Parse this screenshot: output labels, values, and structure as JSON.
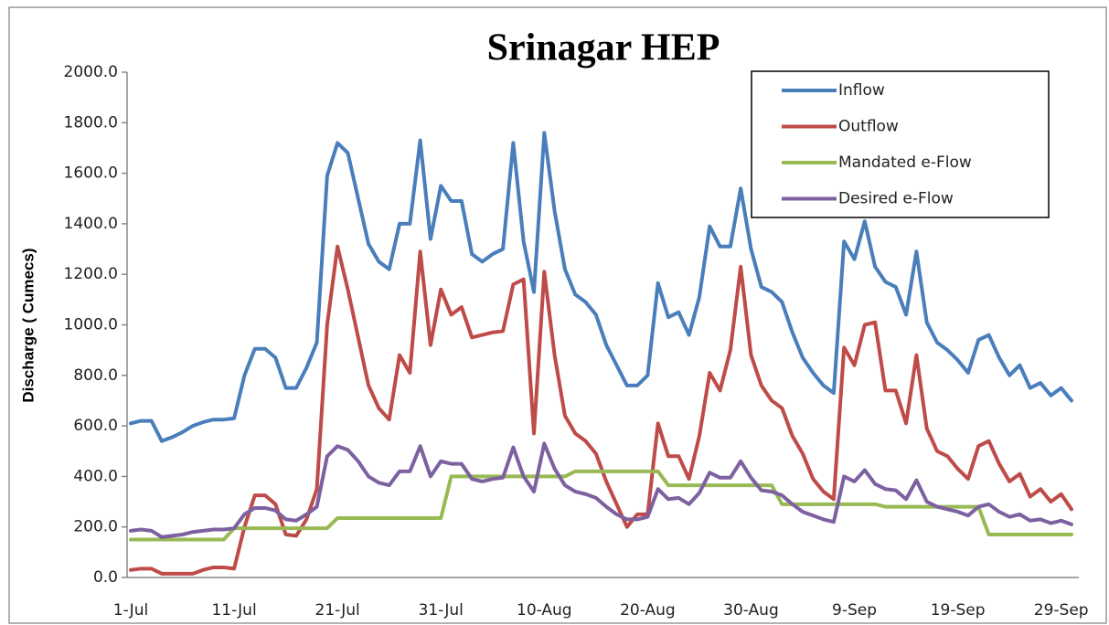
{
  "chart_data": {
    "type": "line",
    "title": "Srinagar HEP",
    "y_label": "Discharge ( Cumecs)",
    "categories": [
      "1-Jul",
      null,
      null,
      null,
      null,
      null,
      null,
      null,
      null,
      null,
      "11-Jul",
      null,
      null,
      null,
      null,
      null,
      null,
      null,
      null,
      null,
      "21-Jul",
      null,
      null,
      null,
      null,
      null,
      null,
      null,
      null,
      null,
      "31-Jul",
      null,
      null,
      null,
      null,
      null,
      null,
      null,
      null,
      null,
      "10-Aug",
      null,
      null,
      null,
      null,
      null,
      null,
      null,
      null,
      null,
      "20-Aug",
      null,
      null,
      null,
      null,
      null,
      null,
      null,
      null,
      null,
      "30-Aug",
      null,
      null,
      null,
      null,
      null,
      null,
      null,
      null,
      null,
      "9-Sep",
      null,
      null,
      null,
      null,
      null,
      null,
      null,
      null,
      null,
      "19-Sep",
      null,
      null,
      null,
      null,
      null,
      null,
      null,
      null,
      null,
      "29-Sep",
      null
    ],
    "series": [
      {
        "name": "Inflow",
        "color": "#4a7ebb",
        "values": [
          610,
          620,
          620,
          540,
          555,
          575,
          600,
          615,
          625,
          625,
          630,
          800,
          905,
          905,
          870,
          750,
          750,
          830,
          930,
          1590,
          1720,
          1680,
          1500,
          1320,
          1250,
          1220,
          1400,
          1400,
          1730,
          1340,
          1550,
          1490,
          1490,
          1280,
          1250,
          1280,
          1300,
          1720,
          1330,
          1130,
          1760,
          1450,
          1220,
          1120,
          1090,
          1040,
          920,
          840,
          760,
          760,
          800,
          1165,
          1030,
          1050,
          960,
          1110,
          1390,
          1310,
          1310,
          1540,
          1300,
          1150,
          1130,
          1090,
          970,
          870,
          810,
          760,
          730,
          1330,
          1260,
          1410,
          1230,
          1170,
          1150,
          1040,
          1290,
          1010,
          930,
          900,
          860,
          810,
          940,
          960,
          870,
          800,
          840,
          750,
          770,
          720,
          750,
          700
        ]
      },
      {
        "name": "Outflow",
        "color": "#be4b48",
        "values": [
          30,
          35,
          35,
          15,
          15,
          15,
          15,
          30,
          40,
          40,
          35,
          200,
          325,
          325,
          290,
          170,
          165,
          230,
          350,
          1000,
          1310,
          1140,
          950,
          760,
          670,
          625,
          880,
          810,
          1290,
          920,
          1140,
          1040,
          1070,
          950,
          960,
          970,
          975,
          1160,
          1180,
          570,
          1210,
          880,
          640,
          570,
          540,
          490,
          380,
          290,
          200,
          250,
          250,
          610,
          480,
          480,
          390,
          560,
          810,
          740,
          900,
          1230,
          880,
          760,
          700,
          670,
          560,
          490,
          390,
          340,
          310,
          910,
          840,
          1000,
          1010,
          740,
          740,
          610,
          880,
          590,
          500,
          480,
          430,
          390,
          520,
          540,
          450,
          380,
          410,
          320,
          350,
          300,
          330,
          270
        ]
      },
      {
        "name": "Mandated e-Flow",
        "color": "#98b954",
        "values": [
          150,
          150,
          150,
          150,
          150,
          150,
          150,
          150,
          150,
          150,
          195,
          195,
          195,
          195,
          195,
          195,
          195,
          195,
          195,
          195,
          235,
          235,
          235,
          235,
          235,
          235,
          235,
          235,
          235,
          235,
          235,
          400,
          400,
          400,
          400,
          400,
          400,
          400,
          400,
          400,
          400,
          400,
          400,
          420,
          420,
          420,
          420,
          420,
          420,
          420,
          420,
          420,
          365,
          365,
          365,
          365,
          365,
          365,
          365,
          365,
          365,
          365,
          365,
          290,
          290,
          290,
          290,
          290,
          290,
          290,
          290,
          290,
          290,
          280,
          280,
          280,
          280,
          280,
          280,
          280,
          280,
          280,
          280,
          170,
          170,
          170,
          170,
          170,
          170,
          170,
          170,
          170
        ]
      },
      {
        "name": "Desired e-Flow",
        "color": "#7d60a0",
        "values": [
          185,
          190,
          185,
          160,
          165,
          170,
          180,
          185,
          190,
          190,
          195,
          250,
          275,
          275,
          265,
          230,
          225,
          250,
          280,
          480,
          520,
          505,
          460,
          400,
          375,
          365,
          420,
          420,
          520,
          400,
          460,
          450,
          450,
          390,
          380,
          390,
          395,
          515,
          400,
          340,
          530,
          430,
          365,
          340,
          330,
          315,
          280,
          250,
          230,
          230,
          240,
          350,
          310,
          315,
          290,
          335,
          415,
          395,
          395,
          460,
          395,
          345,
          340,
          325,
          290,
          260,
          245,
          230,
          220,
          400,
          380,
          425,
          370,
          350,
          345,
          310,
          385,
          300,
          280,
          270,
          260,
          245,
          280,
          290,
          260,
          240,
          250,
          225,
          230,
          215,
          225,
          210
        ]
      }
    ],
    "ylim": [
      0,
      2000
    ],
    "yticks": [
      {
        "value": 0,
        "label": "0.0"
      },
      {
        "value": 200,
        "label": "200.0"
      },
      {
        "value": 400,
        "label": "400.0"
      },
      {
        "value": 600,
        "label": "600.0"
      },
      {
        "value": 800,
        "label": "800.0"
      },
      {
        "value": 1000,
        "label": "1000.0"
      },
      {
        "value": 1200,
        "label": "1200.0"
      },
      {
        "value": 1400,
        "label": "1400.0"
      },
      {
        "value": 1600,
        "label": "1600.0"
      },
      {
        "value": 1800,
        "label": "1800.0"
      },
      {
        "value": 2000,
        "label": "2000.0"
      }
    ],
    "grid": false,
    "legend": "upper right"
  }
}
